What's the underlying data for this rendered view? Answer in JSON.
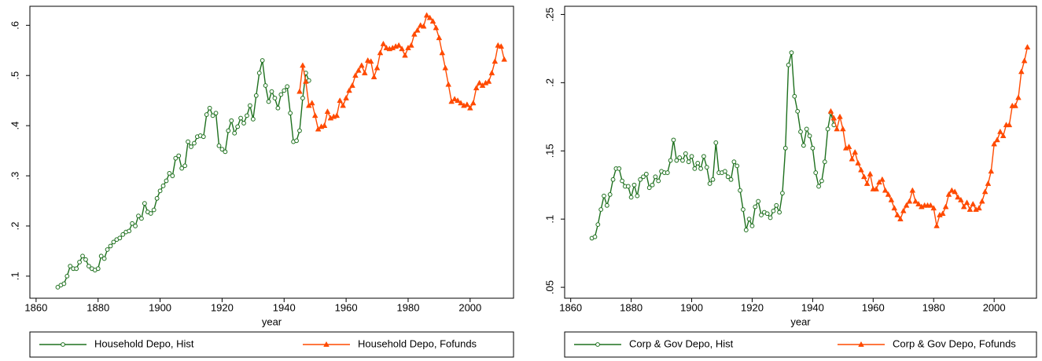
{
  "chart_data": [
    {
      "type": "line",
      "xlabel": "year",
      "xlim": [
        1858,
        2014
      ],
      "xticks": [
        1860,
        1880,
        1900,
        1920,
        1940,
        1960,
        1980,
        2000
      ],
      "ylim": [
        0.056,
        0.638
      ],
      "yticks": [
        {
          "value": 0.1,
          "label": ".1"
        },
        {
          "value": 0.2,
          "label": ".2"
        },
        {
          "value": 0.3,
          "label": ".3"
        },
        {
          "value": 0.4,
          "label": ".4"
        },
        {
          "value": 0.5,
          "label": ".5"
        },
        {
          "value": 0.6,
          "label": ".6"
        }
      ],
      "series": [
        {
          "name": "Household Depo, Hist",
          "color": "#1e701e",
          "marker": "circle",
          "x": [
            1867,
            1868,
            1869,
            1870,
            1871,
            1872,
            1873,
            1874,
            1875,
            1876,
            1877,
            1878,
            1879,
            1880,
            1881,
            1882,
            1883,
            1884,
            1885,
            1886,
            1887,
            1888,
            1889,
            1890,
            1891,
            1892,
            1893,
            1894,
            1895,
            1896,
            1897,
            1898,
            1899,
            1900,
            1901,
            1902,
            1903,
            1904,
            1905,
            1906,
            1907,
            1908,
            1909,
            1910,
            1911,
            1912,
            1913,
            1914,
            1915,
            1916,
            1917,
            1918,
            1919,
            1920,
            1921,
            1922,
            1923,
            1924,
            1925,
            1926,
            1927,
            1928,
            1929,
            1930,
            1931,
            1932,
            1933,
            1934,
            1935,
            1936,
            1937,
            1938,
            1939,
            1940,
            1941,
            1942,
            1943,
            1944,
            1945,
            1946,
            1947,
            1948
          ],
          "values": [
            0.078,
            0.082,
            0.085,
            0.1,
            0.12,
            0.115,
            0.115,
            0.128,
            0.14,
            0.133,
            0.12,
            0.115,
            0.112,
            0.115,
            0.14,
            0.135,
            0.153,
            0.16,
            0.168,
            0.173,
            0.176,
            0.183,
            0.188,
            0.19,
            0.205,
            0.2,
            0.22,
            0.215,
            0.245,
            0.228,
            0.225,
            0.232,
            0.255,
            0.27,
            0.28,
            0.29,
            0.305,
            0.3,
            0.335,
            0.34,
            0.315,
            0.32,
            0.368,
            0.358,
            0.365,
            0.378,
            0.38,
            0.378,
            0.422,
            0.435,
            0.42,
            0.425,
            0.36,
            0.353,
            0.348,
            0.39,
            0.41,
            0.385,
            0.398,
            0.415,
            0.405,
            0.42,
            0.44,
            0.413,
            0.46,
            0.505,
            0.53,
            0.48,
            0.448,
            0.468,
            0.455,
            0.435,
            0.462,
            0.47,
            0.478,
            0.425,
            0.368,
            0.37,
            0.39,
            0.455,
            0.505,
            0.49
          ]
        },
        {
          "name": "Household Depo, Fofunds",
          "color": "#ff4a00",
          "marker": "triangle",
          "x": [
            1945,
            1946,
            1947,
            1948,
            1949,
            1950,
            1951,
            1952,
            1953,
            1954,
            1955,
            1956,
            1957,
            1958,
            1959,
            1960,
            1961,
            1962,
            1963,
            1964,
            1965,
            1966,
            1967,
            1968,
            1969,
            1970,
            1971,
            1972,
            1973,
            1974,
            1975,
            1976,
            1977,
            1978,
            1979,
            1980,
            1981,
            1982,
            1983,
            1984,
            1985,
            1986,
            1987,
            1988,
            1989,
            1990,
            1991,
            1992,
            1993,
            1994,
            1995,
            1996,
            1997,
            1998,
            1999,
            2000,
            2001,
            2002,
            2003,
            2004,
            2005,
            2006,
            2007,
            2008,
            2009,
            2010,
            2011
          ],
          "values": [
            0.468,
            0.52,
            0.488,
            0.44,
            0.445,
            0.42,
            0.393,
            0.398,
            0.4,
            0.428,
            0.415,
            0.418,
            0.42,
            0.45,
            0.44,
            0.455,
            0.47,
            0.48,
            0.5,
            0.51,
            0.52,
            0.505,
            0.53,
            0.528,
            0.497,
            0.515,
            0.545,
            0.563,
            0.555,
            0.553,
            0.555,
            0.558,
            0.56,
            0.553,
            0.54,
            0.555,
            0.56,
            0.582,
            0.59,
            0.6,
            0.598,
            0.62,
            0.615,
            0.608,
            0.595,
            0.575,
            0.545,
            0.515,
            0.482,
            0.448,
            0.453,
            0.45,
            0.445,
            0.44,
            0.442,
            0.435,
            0.445,
            0.475,
            0.485,
            0.48,
            0.485,
            0.488,
            0.505,
            0.528,
            0.56,
            0.558,
            0.532
          ]
        }
      ]
    },
    {
      "type": "line",
      "xlabel": "year",
      "xlim": [
        1858,
        2014
      ],
      "xticks": [
        1860,
        1880,
        1900,
        1920,
        1940,
        1960,
        1980,
        2000
      ],
      "ylim": [
        0.042,
        0.256
      ],
      "yticks": [
        {
          "value": 0.05,
          "label": ".05"
        },
        {
          "value": 0.1,
          "label": ".1"
        },
        {
          "value": 0.15,
          "label": ".15"
        },
        {
          "value": 0.2,
          "label": ".2"
        },
        {
          "value": 0.25,
          "label": ".25"
        }
      ],
      "series": [
        {
          "name": "Corp & Gov Depo, Hist",
          "color": "#1e701e",
          "marker": "circle",
          "x": [
            1867,
            1868,
            1869,
            1870,
            1871,
            1872,
            1873,
            1874,
            1875,
            1876,
            1877,
            1878,
            1879,
            1880,
            1881,
            1882,
            1883,
            1884,
            1885,
            1886,
            1887,
            1888,
            1889,
            1890,
            1891,
            1892,
            1893,
            1894,
            1895,
            1896,
            1897,
            1898,
            1899,
            1900,
            1901,
            1902,
            1903,
            1904,
            1905,
            1906,
            1907,
            1908,
            1909,
            1910,
            1911,
            1912,
            1913,
            1914,
            1915,
            1916,
            1917,
            1918,
            1919,
            1920,
            1921,
            1922,
            1923,
            1924,
            1925,
            1926,
            1927,
            1928,
            1929,
            1930,
            1931,
            1932,
            1933,
            1934,
            1935,
            1936,
            1937,
            1938,
            1939,
            1940,
            1941,
            1942,
            1943,
            1944,
            1945,
            1946,
            1947
          ],
          "values": [
            0.086,
            0.087,
            0.096,
            0.107,
            0.117,
            0.11,
            0.118,
            0.129,
            0.137,
            0.137,
            0.128,
            0.124,
            0.124,
            0.116,
            0.125,
            0.117,
            0.129,
            0.131,
            0.133,
            0.123,
            0.125,
            0.131,
            0.128,
            0.135,
            0.134,
            0.134,
            0.143,
            0.158,
            0.143,
            0.145,
            0.143,
            0.148,
            0.142,
            0.146,
            0.137,
            0.141,
            0.137,
            0.146,
            0.138,
            0.126,
            0.129,
            0.156,
            0.134,
            0.134,
            0.135,
            0.131,
            0.129,
            0.142,
            0.139,
            0.121,
            0.107,
            0.092,
            0.1,
            0.095,
            0.109,
            0.113,
            0.103,
            0.105,
            0.104,
            0.101,
            0.106,
            0.11,
            0.105,
            0.119,
            0.152,
            0.213,
            0.222,
            0.19,
            0.179,
            0.164,
            0.154,
            0.166,
            0.161,
            0.152,
            0.134,
            0.124,
            0.128,
            0.142,
            0.166,
            0.178,
            0.169
          ]
        },
        {
          "name": "Corp & Gov Depo, Fofunds",
          "color": "#ff4a00",
          "marker": "triangle",
          "x": [
            1946,
            1947,
            1948,
            1949,
            1950,
            1951,
            1952,
            1953,
            1954,
            1955,
            1956,
            1957,
            1958,
            1959,
            1960,
            1961,
            1962,
            1963,
            1964,
            1965,
            1966,
            1967,
            1968,
            1969,
            1970,
            1971,
            1972,
            1973,
            1974,
            1975,
            1976,
            1977,
            1978,
            1979,
            1980,
            1981,
            1982,
            1983,
            1984,
            1985,
            1986,
            1987,
            1988,
            1989,
            1990,
            1991,
            1992,
            1993,
            1994,
            1995,
            1996,
            1997,
            1998,
            1999,
            2000,
            2001,
            2002,
            2003,
            2004,
            2005,
            2006,
            2007,
            2008,
            2009,
            2010,
            2011
          ],
          "values": [
            0.179,
            0.174,
            0.166,
            0.175,
            0.166,
            0.152,
            0.153,
            0.144,
            0.149,
            0.141,
            0.136,
            0.131,
            0.126,
            0.133,
            0.122,
            0.122,
            0.127,
            0.129,
            0.121,
            0.118,
            0.114,
            0.108,
            0.103,
            0.1,
            0.106,
            0.11,
            0.113,
            0.121,
            0.113,
            0.111,
            0.109,
            0.11,
            0.11,
            0.11,
            0.108,
            0.095,
            0.103,
            0.104,
            0.109,
            0.118,
            0.121,
            0.12,
            0.116,
            0.114,
            0.109,
            0.112,
            0.107,
            0.111,
            0.107,
            0.108,
            0.113,
            0.12,
            0.126,
            0.135,
            0.155,
            0.158,
            0.164,
            0.161,
            0.169,
            0.169,
            0.183,
            0.183,
            0.189,
            0.208,
            0.216,
            0.226
          ]
        }
      ]
    }
  ]
}
